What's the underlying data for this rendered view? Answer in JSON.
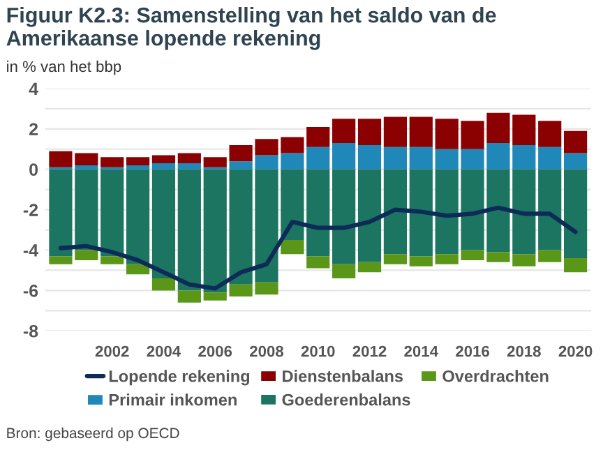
{
  "chart_data": {
    "type": "bar",
    "stacked": true,
    "title": "Figuur K2.3: Samenstelling van het saldo van de Amerikaanse lopende rekening",
    "subtitle": "in % van het bbp",
    "categories": [
      null,
      null,
      "2002",
      null,
      "2004",
      null,
      "2006",
      null,
      "2008",
      null,
      "2010",
      null,
      "2012",
      null,
      "2014",
      null,
      "2016",
      null,
      "2018",
      null,
      "2020"
    ],
    "series": [
      {
        "name": "Lopende rekening",
        "type": "line",
        "color": "#0d2b57",
        "values": [
          -3.9,
          -3.8,
          -4.1,
          -4.5,
          -5.1,
          -5.7,
          -5.9,
          -5.1,
          -4.7,
          -2.6,
          -2.9,
          -2.9,
          -2.6,
          -2.0,
          -2.1,
          -2.3,
          -2.2,
          -1.9,
          -2.2,
          -2.2,
          -3.1
        ]
      },
      {
        "name": "Primair inkomen",
        "color": "#1f88b8",
        "values": [
          0.1,
          0.2,
          0.1,
          0.2,
          0.3,
          0.3,
          0.1,
          0.4,
          0.7,
          0.8,
          1.1,
          1.3,
          1.2,
          1.1,
          1.1,
          1.0,
          1.0,
          1.3,
          1.2,
          1.1,
          0.8
        ]
      },
      {
        "name": "Dienstenbalans",
        "color": "#8b0000",
        "values": [
          0.8,
          0.6,
          0.5,
          0.4,
          0.4,
          0.5,
          0.5,
          0.8,
          0.8,
          0.8,
          1.0,
          1.2,
          1.3,
          1.5,
          1.5,
          1.5,
          1.4,
          1.5,
          1.5,
          1.3,
          1.1
        ]
      },
      {
        "name": "Goederenbalans",
        "color": "#1b7561",
        "values": [
          -4.3,
          -4.0,
          -4.3,
          -4.7,
          -5.4,
          -6.0,
          -6.1,
          -5.7,
          -5.6,
          -3.5,
          -4.3,
          -4.7,
          -4.6,
          -4.2,
          -4.3,
          -4.2,
          -4.0,
          -4.1,
          -4.2,
          -4.0,
          -4.4
        ]
      },
      {
        "name": "Overdrachten",
        "color": "#5a9618",
        "values": [
          -0.4,
          -0.5,
          -0.4,
          -0.5,
          -0.6,
          -0.6,
          -0.4,
          -0.6,
          -0.6,
          -0.7,
          -0.6,
          -0.7,
          -0.5,
          -0.5,
          -0.5,
          -0.5,
          -0.5,
          -0.5,
          -0.6,
          -0.6,
          -0.7
        ]
      }
    ],
    "ylim": [
      -8,
      4
    ],
    "yticks": [
      -8,
      {
        "value": -7,
        "label": null
      },
      -6,
      {
        "value": -5,
        "label": null
      },
      -4,
      {
        "value": -3,
        "label": null
      },
      -2,
      {
        "value": -1,
        "label": null
      },
      0,
      {
        "value": 1,
        "label": null
      },
      2,
      {
        "value": 3,
        "label": null
      },
      4
    ],
    "grid": "y",
    "legend": "bottom",
    "annotations": [
      "Bron: gebaseerd op OECD"
    ]
  }
}
